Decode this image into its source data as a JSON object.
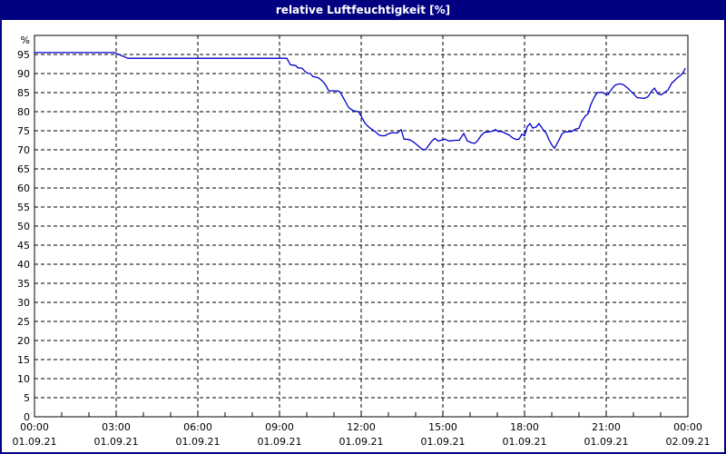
{
  "window": {
    "title": "relative Luftfeuchtigkeit [%]",
    "colors": {
      "title_bar": "#000080",
      "border": "#000080",
      "background": "#ffffff"
    }
  },
  "chart_data": {
    "type": "line",
    "title": "relative Luftfeuchtigkeit [%]",
    "series_name": "relative Luftfeuchtigkeit",
    "unit_label": "%",
    "line_color": "#0000cd",
    "grid": "dashed-black",
    "legend": "none",
    "xlim_hours": [
      0,
      24
    ],
    "ylim": [
      0,
      100
    ],
    "yticks": [
      0,
      5,
      10,
      15,
      20,
      25,
      30,
      35,
      40,
      45,
      50,
      55,
      60,
      65,
      70,
      75,
      80,
      85,
      90,
      95
    ],
    "xticks": [
      {
        "time": "00:00",
        "date": "01.09.21"
      },
      {
        "time": "03:00",
        "date": "01.09.21"
      },
      {
        "time": "06:00",
        "date": "01.09.21"
      },
      {
        "time": "09:00",
        "date": "01.09.21"
      },
      {
        "time": "12:00",
        "date": "01.09.21"
      },
      {
        "time": "15:00",
        "date": "01.09.21"
      },
      {
        "time": "18:00",
        "date": "01.09.21"
      },
      {
        "time": "21:00",
        "date": "01.09.21"
      },
      {
        "time": "00:00",
        "date": "02.09.21"
      }
    ],
    "points": [
      [
        0,
        95.5
      ],
      [
        2.93,
        95.5
      ],
      [
        3.07,
        95.1
      ],
      [
        3.43,
        94.0
      ],
      [
        9.27,
        94.0
      ],
      [
        9.33,
        93.2
      ],
      [
        9.4,
        92.3
      ],
      [
        9.6,
        92.1
      ],
      [
        9.67,
        91.5
      ],
      [
        9.83,
        91.4
      ],
      [
        9.93,
        90.6
      ],
      [
        10.03,
        90.1
      ],
      [
        10.13,
        90.0
      ],
      [
        10.23,
        89.2
      ],
      [
        10.43,
        88.9
      ],
      [
        10.53,
        88.3
      ],
      [
        10.63,
        87.6
      ],
      [
        10.73,
        86.6
      ],
      [
        10.8,
        85.5
      ],
      [
        11.17,
        85.4
      ],
      [
        11.23,
        85.1
      ],
      [
        11.33,
        83.8
      ],
      [
        11.43,
        82.5
      ],
      [
        11.53,
        81.2
      ],
      [
        11.63,
        80.6
      ],
      [
        11.73,
        80.2
      ],
      [
        11.9,
        80.0
      ],
      [
        12.0,
        78.8
      ],
      [
        12.13,
        77.1
      ],
      [
        12.23,
        76.3
      ],
      [
        12.33,
        75.7
      ],
      [
        12.43,
        75.2
      ],
      [
        12.53,
        74.7
      ],
      [
        12.63,
        74.0
      ],
      [
        12.73,
        73.7
      ],
      [
        12.87,
        73.7
      ],
      [
        12.97,
        74.1
      ],
      [
        13.13,
        74.5
      ],
      [
        13.33,
        74.4
      ],
      [
        13.47,
        75.3
      ],
      [
        13.57,
        72.8
      ],
      [
        13.77,
        72.7
      ],
      [
        13.93,
        72.0
      ],
      [
        14.07,
        71.2
      ],
      [
        14.23,
        70.2
      ],
      [
        14.37,
        70.0
      ],
      [
        14.47,
        71.1
      ],
      [
        14.6,
        72.3
      ],
      [
        14.7,
        73.0
      ],
      [
        14.83,
        72.3
      ],
      [
        14.93,
        72.5
      ],
      [
        15.07,
        72.8
      ],
      [
        15.23,
        72.3
      ],
      [
        15.43,
        72.5
      ],
      [
        15.6,
        72.5
      ],
      [
        15.77,
        74.3
      ],
      [
        15.9,
        72.3
      ],
      [
        16.07,
        71.8
      ],
      [
        16.17,
        71.7
      ],
      [
        16.27,
        72.3
      ],
      [
        16.4,
        73.7
      ],
      [
        16.53,
        74.6
      ],
      [
        16.7,
        74.7
      ],
      [
        16.83,
        74.9
      ],
      [
        16.93,
        75.3
      ],
      [
        17.03,
        74.8
      ],
      [
        17.17,
        74.8
      ],
      [
        17.27,
        74.4
      ],
      [
        17.43,
        73.9
      ],
      [
        17.57,
        73.1
      ],
      [
        17.7,
        72.7
      ],
      [
        17.8,
        72.8
      ],
      [
        17.9,
        74.1
      ],
      [
        18.0,
        73.7
      ],
      [
        18.1,
        76.1
      ],
      [
        18.2,
        76.9
      ],
      [
        18.3,
        75.7
      ],
      [
        18.43,
        76.0
      ],
      [
        18.53,
        76.9
      ],
      [
        18.67,
        75.4
      ],
      [
        18.8,
        74.3
      ],
      [
        18.9,
        72.6
      ],
      [
        19.0,
        71.3
      ],
      [
        19.1,
        70.4
      ],
      [
        19.23,
        72.1
      ],
      [
        19.37,
        74.1
      ],
      [
        19.47,
        74.7
      ],
      [
        19.73,
        74.8
      ],
      [
        19.87,
        75.4
      ],
      [
        20.0,
        75.7
      ],
      [
        20.1,
        77.5
      ],
      [
        20.23,
        78.9
      ],
      [
        20.33,
        79.4
      ],
      [
        20.43,
        81.8
      ],
      [
        20.57,
        83.9
      ],
      [
        20.67,
        85.0
      ],
      [
        20.87,
        85.1
      ],
      [
        20.97,
        84.6
      ],
      [
        21.07,
        84.5
      ],
      [
        21.2,
        85.9
      ],
      [
        21.33,
        87.0
      ],
      [
        21.5,
        87.3
      ],
      [
        21.63,
        87.1
      ],
      [
        21.77,
        86.3
      ],
      [
        21.9,
        85.4
      ],
      [
        22.03,
        84.5
      ],
      [
        22.13,
        83.7
      ],
      [
        22.4,
        83.5
      ],
      [
        22.53,
        83.9
      ],
      [
        22.67,
        85.4
      ],
      [
        22.77,
        86.2
      ],
      [
        22.9,
        84.7
      ],
      [
        23.03,
        84.4
      ],
      [
        23.13,
        85.0
      ],
      [
        23.27,
        85.7
      ],
      [
        23.4,
        87.4
      ],
      [
        23.53,
        88.3
      ],
      [
        23.63,
        89.0
      ],
      [
        23.73,
        89.5
      ],
      [
        23.83,
        90.3
      ],
      [
        23.9,
        91.3
      ]
    ]
  }
}
